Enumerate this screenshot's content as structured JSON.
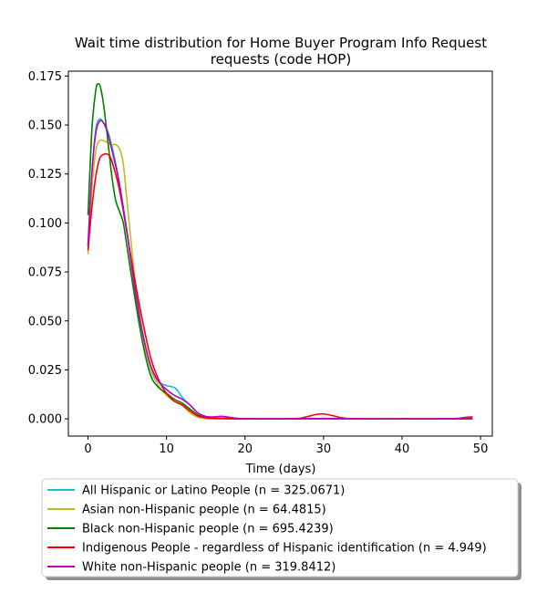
{
  "chart_data": {
    "type": "line",
    "title_line1": "Wait time distribution  for Home Buyer Program Info Request",
    "title_line2": "requests (code HOP)",
    "xlabel": "Time (days)",
    "ylabel": "",
    "xlim": [
      -2.5,
      51.5
    ],
    "ylim": [
      -0.0088,
      0.1775
    ],
    "xticks": [
      0,
      10,
      20,
      30,
      40,
      50
    ],
    "yticks": [
      0.0,
      0.025,
      0.05,
      0.075,
      0.1,
      0.125,
      0.15,
      0.175
    ],
    "ytick_labels": [
      "0.000",
      "0.025",
      "0.050",
      "0.075",
      "0.100",
      "0.125",
      "0.150",
      "0.175"
    ],
    "grid": false,
    "legend_position": "bottom",
    "series": [
      {
        "name": "All Hispanic or Latino People (n = 325.0671)",
        "color": "#17becf",
        "points": [
          [
            0,
            0.089
          ],
          [
            0.5,
            0.125
          ],
          [
            1,
            0.148
          ],
          [
            1.5,
            0.153
          ],
          [
            2,
            0.151
          ],
          [
            2.5,
            0.147
          ],
          [
            3,
            0.14
          ],
          [
            3.5,
            0.131
          ],
          [
            4,
            0.12
          ],
          [
            5,
            0.095
          ],
          [
            6,
            0.066
          ],
          [
            7,
            0.042
          ],
          [
            8,
            0.026
          ],
          [
            9,
            0.019
          ],
          [
            10,
            0.017
          ],
          [
            11,
            0.016
          ],
          [
            11.5,
            0.014
          ],
          [
            12,
            0.011
          ],
          [
            13,
            0.007
          ],
          [
            14,
            0.003
          ],
          [
            15,
            0.0012
          ],
          [
            16,
            0.0006
          ],
          [
            18,
            0.0003
          ],
          [
            20,
            0.0001
          ],
          [
            25,
            0.0
          ],
          [
            30,
            0.0
          ],
          [
            35,
            0.0
          ],
          [
            40,
            0.0
          ],
          [
            45,
            0.0
          ],
          [
            48,
            0.0003
          ],
          [
            49,
            0.0005
          ]
        ]
      },
      {
        "name": "Asian non-Hispanic people (n = 64.4815)",
        "color": "#bcbd22",
        "points": [
          [
            0,
            0.084
          ],
          [
            0.5,
            0.118
          ],
          [
            1,
            0.137
          ],
          [
            1.5,
            0.142
          ],
          [
            2,
            0.142
          ],
          [
            2.5,
            0.141
          ],
          [
            3,
            0.14
          ],
          [
            3.5,
            0.14
          ],
          [
            4,
            0.138
          ],
          [
            4.5,
            0.13
          ],
          [
            5,
            0.11
          ],
          [
            6,
            0.071
          ],
          [
            7,
            0.042
          ],
          [
            8,
            0.025
          ],
          [
            9,
            0.017
          ],
          [
            10,
            0.012
          ],
          [
            11,
            0.009
          ],
          [
            12,
            0.007
          ],
          [
            13,
            0.003
          ],
          [
            14,
            0.0008
          ],
          [
            15,
            0.0002
          ],
          [
            16,
            0.0
          ],
          [
            20,
            0.0
          ],
          [
            25,
            0.0
          ],
          [
            30,
            0.0
          ],
          [
            35,
            0.0
          ],
          [
            40,
            0.0
          ],
          [
            45,
            0.0
          ],
          [
            49,
            0.0
          ]
        ]
      },
      {
        "name": "Black non-Hispanic people (n = 695.4239)",
        "color": "#008000",
        "points": [
          [
            0,
            0.104
          ],
          [
            0.5,
            0.148
          ],
          [
            1,
            0.168
          ],
          [
            1.3,
            0.171
          ],
          [
            1.6,
            0.169
          ],
          [
            2,
            0.16
          ],
          [
            2.5,
            0.143
          ],
          [
            3,
            0.125
          ],
          [
            3.5,
            0.112
          ],
          [
            4,
            0.106
          ],
          [
            4.5,
            0.1
          ],
          [
            5,
            0.087
          ],
          [
            6,
            0.061
          ],
          [
            7,
            0.038
          ],
          [
            8,
            0.022
          ],
          [
            9,
            0.016
          ],
          [
            10,
            0.013
          ],
          [
            11,
            0.01
          ],
          [
            12,
            0.008
          ],
          [
            13,
            0.005
          ],
          [
            14,
            0.002
          ],
          [
            15,
            0.0008
          ],
          [
            16,
            0.0003
          ],
          [
            18,
            0.0001
          ],
          [
            20,
            0.0
          ],
          [
            25,
            0.0
          ],
          [
            30,
            0.0
          ],
          [
            35,
            0.0
          ],
          [
            40,
            0.0
          ],
          [
            45,
            0.0
          ],
          [
            49,
            0.0
          ]
        ]
      },
      {
        "name": "Indigenous People - regardless of Hispanic identification (n = 4.949)",
        "color": "#ff0000",
        "points": [
          [
            0,
            0.086
          ],
          [
            0.5,
            0.108
          ],
          [
            1,
            0.124
          ],
          [
            1.5,
            0.133
          ],
          [
            2,
            0.135
          ],
          [
            2.5,
            0.135
          ],
          [
            3,
            0.132
          ],
          [
            4,
            0.117
          ],
          [
            5,
            0.094
          ],
          [
            6,
            0.07
          ],
          [
            7,
            0.049
          ],
          [
            8,
            0.031
          ],
          [
            9,
            0.02
          ],
          [
            10,
            0.013
          ],
          [
            11,
            0.009
          ],
          [
            12,
            0.007
          ],
          [
            13,
            0.004
          ],
          [
            14,
            0.0015
          ],
          [
            15,
            0.0005
          ],
          [
            16,
            0.0002
          ],
          [
            20,
            0.0
          ],
          [
            25,
            0.0
          ],
          [
            27,
            0.0003
          ],
          [
            28,
            0.0012
          ],
          [
            29,
            0.0022
          ],
          [
            30,
            0.0025
          ],
          [
            31,
            0.0018
          ],
          [
            32,
            0.0008
          ],
          [
            33,
            0.0002
          ],
          [
            35,
            0.0
          ],
          [
            40,
            0.0
          ],
          [
            45,
            0.0
          ],
          [
            49,
            0.0
          ]
        ]
      },
      {
        "name": "White non-Hispanic people (n = 319.8412)",
        "color": "#bf00bf",
        "points": [
          [
            0,
            0.088
          ],
          [
            0.5,
            0.126
          ],
          [
            1,
            0.146
          ],
          [
            1.5,
            0.152
          ],
          [
            2,
            0.151
          ],
          [
            2.5,
            0.146
          ],
          [
            3,
            0.138
          ],
          [
            4,
            0.12
          ],
          [
            5,
            0.094
          ],
          [
            6,
            0.066
          ],
          [
            7,
            0.043
          ],
          [
            8,
            0.027
          ],
          [
            9,
            0.019
          ],
          [
            10,
            0.015
          ],
          [
            11,
            0.012
          ],
          [
            12,
            0.01
          ],
          [
            13,
            0.007
          ],
          [
            14,
            0.003
          ],
          [
            15,
            0.0012
          ],
          [
            16,
            0.001
          ],
          [
            17,
            0.0013
          ],
          [
            18,
            0.0008
          ],
          [
            19,
            0.0003
          ],
          [
            20,
            0.0001
          ],
          [
            25,
            0.0
          ],
          [
            30,
            0.0002
          ],
          [
            35,
            0.0
          ],
          [
            40,
            0.0
          ],
          [
            45,
            0.0
          ],
          [
            47,
            0.0002
          ],
          [
            48,
            0.0007
          ],
          [
            49,
            0.001
          ]
        ]
      }
    ]
  }
}
